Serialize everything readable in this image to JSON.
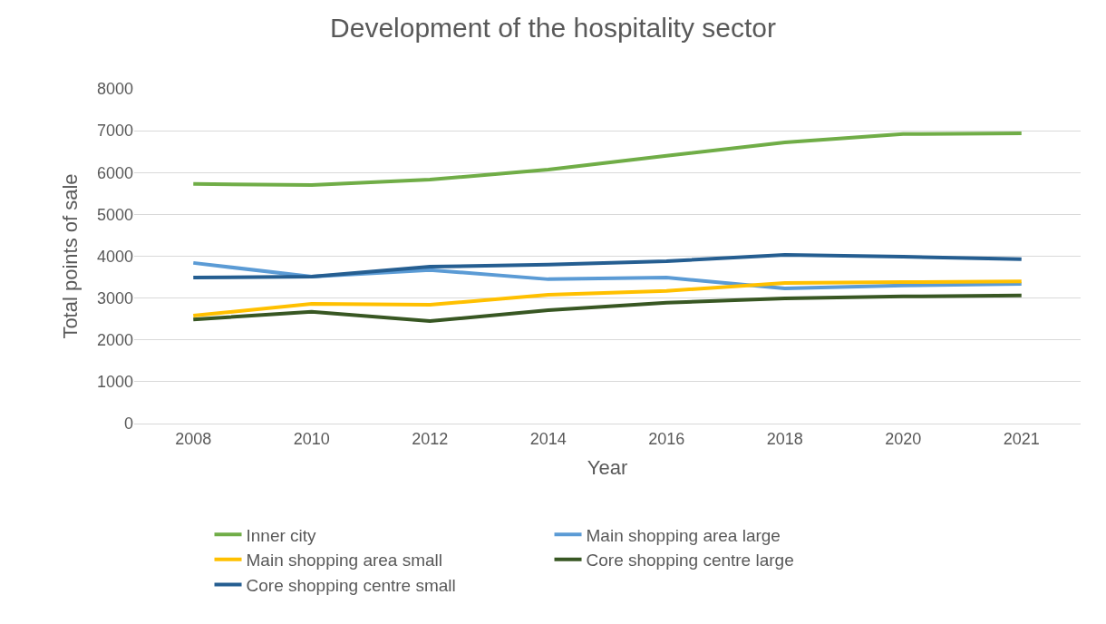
{
  "chart_data": {
    "type": "line",
    "title": "Development of the hospitality sector",
    "xlabel": "Year",
    "ylabel": "Total points of sale",
    "categories": [
      "2008",
      "2010",
      "2012",
      "2014",
      "2016",
      "2018",
      "2020",
      "2021"
    ],
    "series": [
      {
        "name": "Inner city",
        "color": "#70ad47",
        "values": [
          5730,
          5700,
          5830,
          6070,
          6400,
          6720,
          6920,
          6940
        ]
      },
      {
        "name": "Main shopping area large",
        "color": "#5b9bd5",
        "values": [
          3840,
          3510,
          3670,
          3450,
          3490,
          3230,
          3300,
          3340
        ]
      },
      {
        "name": "Main shopping area small",
        "color": "#ffc000",
        "values": [
          2580,
          2860,
          2840,
          3080,
          3170,
          3360,
          3380,
          3400
        ]
      },
      {
        "name": "Core shopping centre large",
        "color": "#385723",
        "values": [
          2490,
          2670,
          2450,
          2710,
          2890,
          2990,
          3040,
          3060
        ]
      },
      {
        "name": "Core shopping centre small",
        "color": "#255e91",
        "values": [
          3490,
          3510,
          3750,
          3800,
          3880,
          4030,
          3990,
          3930
        ]
      }
    ],
    "ylim": [
      0,
      8000
    ],
    "yticks": [
      0,
      1000,
      2000,
      3000,
      4000,
      5000,
      6000,
      7000,
      8000
    ],
    "grid": "y",
    "legend": "bottom",
    "marker": "none",
    "line_style": "solid"
  }
}
